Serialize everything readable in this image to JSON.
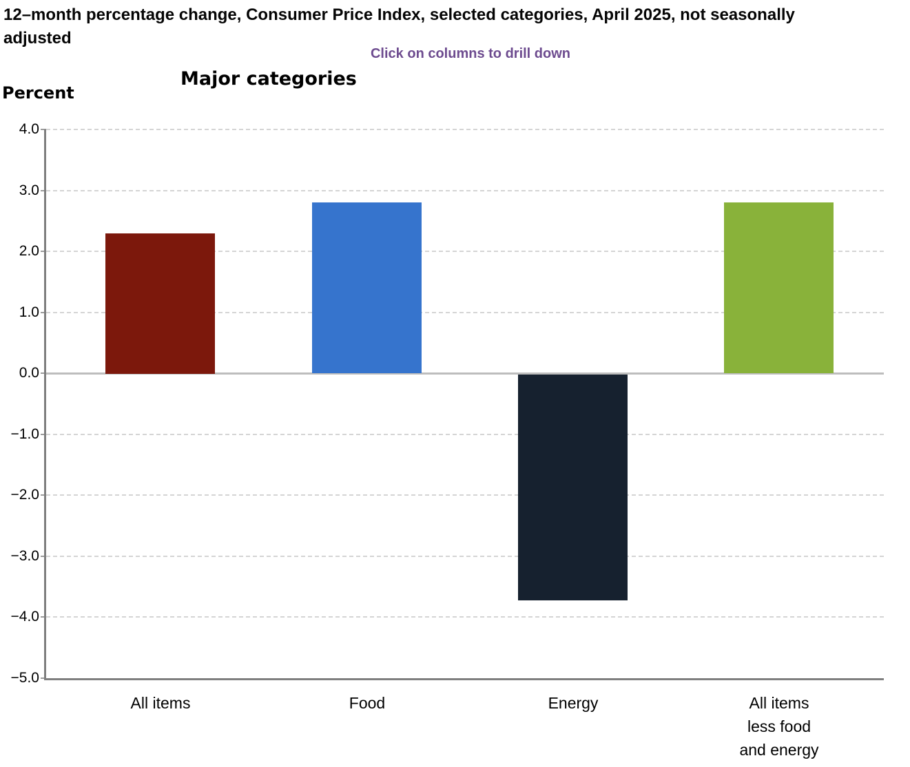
{
  "header": {
    "title": "12–month percentage change, Consumer Price Index, selected categories, April 2025, not seasonally adjusted",
    "subtitle": "Click on columns to drill down",
    "section_title": "Major categories",
    "axis_unit_label": "Percent"
  },
  "colors": {
    "subtitle_text": "#6d4b8f",
    "title_text": "#050505",
    "axis_line": "#7f7f7f",
    "gridline": "#d4d4d4",
    "zero_line": "#bdbdbd"
  },
  "chart_data": {
    "type": "bar",
    "title": "Major categories",
    "xlabel": "",
    "ylabel": "Percent",
    "categories": [
      "All items",
      "Food",
      "Energy",
      "All items\nless food\nand energy"
    ],
    "values": [
      2.3,
      2.8,
      -3.7,
      2.8
    ],
    "bar_colors": [
      "#7c180c",
      "#3674cd",
      "#16212f",
      "#89b23a"
    ],
    "ylim": [
      -5.0,
      4.0
    ],
    "ytick_step": 1.0,
    "yticks": [
      "4.0",
      "3.0",
      "2.0",
      "1.0",
      "0.0",
      "−1.0",
      "−2.0",
      "−3.0",
      "−4.0",
      "−5.0"
    ],
    "grid": "horizontal-dashed",
    "legend": "none",
    "annotation": "Click on columns to drill down"
  }
}
